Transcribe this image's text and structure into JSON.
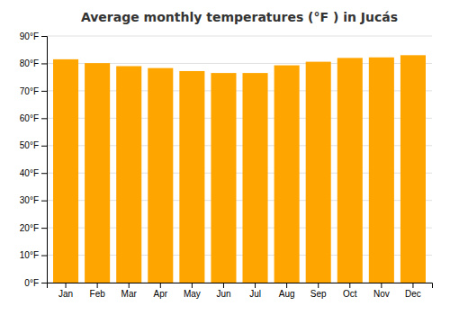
{
  "chart_data": {
    "type": "bar",
    "title": "Average monthly temperatures (°F ) in Jucás",
    "categories": [
      "Jan",
      "Feb",
      "Mar",
      "Apr",
      "May",
      "Jun",
      "Jul",
      "Aug",
      "Sep",
      "Oct",
      "Nov",
      "Dec"
    ],
    "values": [
      81.5,
      80.1,
      79.0,
      78.3,
      77.2,
      76.5,
      76.5,
      79.3,
      80.6,
      82.0,
      82.2,
      83.0
    ],
    "color": "#FFA500",
    "ylim": [
      0,
      90
    ],
    "yticks": [
      {
        "value": 0,
        "label": "0°F"
      },
      {
        "value": 10,
        "label": "10°F"
      },
      {
        "value": 20,
        "label": "20°F"
      },
      {
        "value": 30,
        "label": "30°F"
      },
      {
        "value": 40,
        "label": "40°F"
      },
      {
        "value": 50,
        "label": "50°F"
      },
      {
        "value": 60,
        "label": "60°F"
      },
      {
        "value": 70,
        "label": "70°F"
      },
      {
        "value": 80,
        "label": "80°F"
      },
      {
        "value": 90,
        "label": "90°F"
      }
    ],
    "grid": true
  }
}
